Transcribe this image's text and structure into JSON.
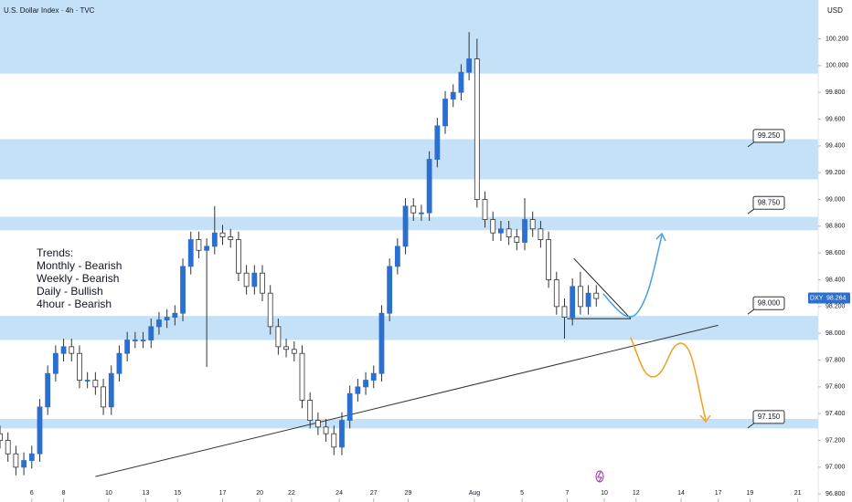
{
  "chart_data": {
    "type": "candlestick",
    "title": "U.S. Dollar Index · 4h · TVC",
    "currency": "USD",
    "symbol": "DXY",
    "last_price": {
      "value": 98.264,
      "label": "98.264"
    },
    "up_color": "#2a6fd1",
    "down_color": "#ffffff",
    "zone_color": "#c5e1f8",
    "x": [
      0,
      3,
      6,
      9,
      12,
      15,
      18,
      21,
      24,
      27,
      30,
      33,
      36,
      39,
      42,
      45,
      48,
      51,
      54,
      57,
      60,
      63,
      66,
      69,
      72,
      75,
      78,
      81,
      84,
      87,
      90,
      93,
      96,
      99,
      102,
      105,
      108,
      111,
      114,
      117,
      120,
      123,
      126,
      129,
      132,
      135,
      138,
      141,
      144,
      147,
      150,
      153,
      156,
      159,
      162,
      165,
      168,
      171,
      174,
      177,
      180,
      183,
      186,
      189,
      192,
      195,
      198,
      201,
      204,
      207,
      210,
      213,
      216,
      219,
      222,
      225
    ],
    "open": [
      97.25,
      97.2,
      97.1,
      97.0,
      97.05,
      97.1,
      97.45,
      97.7,
      97.85,
      97.9,
      97.85,
      97.65,
      97.65,
      97.6,
      97.45,
      97.7,
      97.85,
      97.95,
      97.95,
      97.95,
      98.05,
      98.1,
      98.12,
      98.15,
      98.5,
      98.7,
      98.62,
      98.65,
      98.75,
      98.72,
      98.7,
      98.45,
      98.35,
      98.45,
      98.3,
      98.05,
      97.9,
      97.88,
      97.85,
      97.5,
      97.35,
      97.3,
      97.25,
      97.15,
      97.35,
      97.55,
      97.6,
      97.65,
      97.7,
      98.15,
      98.5,
      98.65,
      98.95,
      98.9,
      98.9,
      99.3,
      99.55,
      99.75,
      99.8,
      99.95,
      100.05,
      99.0,
      98.85,
      98.75,
      98.78,
      98.72,
      98.68,
      98.85,
      98.78,
      98.7,
      98.4,
      98.2,
      98.12,
      98.35,
      98.2,
      98.3
    ],
    "high": [
      97.31,
      97.26,
      97.16,
      97.11,
      97.16,
      97.51,
      97.76,
      97.91,
      97.96,
      97.96,
      97.91,
      97.71,
      97.71,
      97.66,
      97.76,
      97.91,
      98.01,
      98.01,
      98.01,
      98.11,
      98.16,
      98.18,
      98.21,
      98.56,
      98.76,
      98.76,
      98.71,
      98.95,
      98.81,
      98.78,
      98.76,
      98.51,
      98.51,
      98.51,
      98.36,
      98.11,
      97.96,
      97.94,
      97.91,
      97.56,
      97.41,
      97.36,
      97.31,
      97.41,
      97.61,
      97.66,
      97.71,
      97.76,
      98.21,
      98.56,
      98.71,
      99.01,
      99.01,
      98.96,
      99.36,
      99.61,
      99.81,
      99.86,
      100.01,
      100.25,
      100.2,
      99.06,
      98.91,
      98.84,
      98.84,
      98.78,
      99.01,
      98.91,
      98.84,
      98.76,
      98.46,
      98.26,
      98.41,
      98.46,
      98.36,
      98.36
    ],
    "low": [
      97.14,
      97.04,
      96.94,
      96.94,
      96.99,
      97.04,
      97.39,
      97.64,
      97.79,
      97.79,
      97.59,
      97.59,
      97.54,
      97.39,
      97.39,
      97.64,
      97.79,
      97.89,
      97.89,
      97.89,
      97.99,
      98.04,
      98.06,
      98.09,
      98.44,
      98.56,
      97.75,
      98.59,
      98.66,
      98.64,
      98.39,
      98.29,
      98.29,
      98.24,
      97.99,
      97.84,
      97.82,
      97.79,
      97.44,
      97.29,
      97.24,
      97.19,
      97.09,
      97.09,
      97.29,
      97.49,
      97.54,
      97.59,
      97.64,
      98.09,
      98.44,
      98.59,
      98.84,
      98.84,
      98.84,
      99.24,
      99.49,
      99.69,
      99.74,
      99.89,
      98.94,
      98.79,
      98.69,
      98.69,
      98.66,
      98.62,
      98.62,
      98.72,
      98.64,
      98.34,
      98.14,
      97.96,
      98.06,
      98.14,
      98.14,
      98.2
    ],
    "close": [
      97.2,
      97.1,
      97.0,
      97.05,
      97.1,
      97.45,
      97.7,
      97.85,
      97.9,
      97.85,
      97.65,
      97.65,
      97.6,
      97.45,
      97.7,
      97.85,
      97.95,
      97.95,
      97.95,
      98.05,
      98.1,
      98.12,
      98.15,
      98.5,
      98.7,
      98.62,
      98.65,
      98.75,
      98.72,
      98.7,
      98.45,
      98.35,
      98.45,
      98.3,
      98.05,
      97.9,
      97.88,
      97.85,
      97.5,
      97.35,
      97.3,
      97.25,
      97.15,
      97.35,
      97.55,
      97.6,
      97.65,
      97.7,
      98.15,
      98.5,
      98.65,
      98.95,
      98.9,
      98.9,
      99.3,
      99.55,
      99.75,
      99.8,
      99.95,
      100.05,
      99.0,
      98.85,
      98.75,
      98.78,
      98.72,
      98.68,
      98.85,
      98.78,
      98.7,
      98.4,
      98.2,
      98.12,
      98.35,
      98.2,
      98.3,
      98.26
    ],
    "xlim": [
      0,
      307
    ],
    "ylim": [
      96.74,
      100.49
    ],
    "xticks": [
      {
        "value": 12,
        "label": "6"
      },
      {
        "value": 24,
        "label": "8"
      },
      {
        "value": 41,
        "label": "10"
      },
      {
        "value": 55,
        "label": "13"
      },
      {
        "value": 67,
        "label": "15"
      },
      {
        "value": 84,
        "label": "17"
      },
      {
        "value": 98,
        "label": "20"
      },
      {
        "value": 110,
        "label": "22"
      },
      {
        "value": 128,
        "label": "24"
      },
      {
        "value": 141,
        "label": "27"
      },
      {
        "value": 154,
        "label": "29"
      },
      {
        "value": 179,
        "label": "Aug"
      },
      {
        "value": 197,
        "label": "5"
      },
      {
        "value": 214,
        "label": "7"
      },
      {
        "value": 228,
        "label": "10"
      },
      {
        "value": 240,
        "label": "12"
      },
      {
        "value": 257,
        "label": "14"
      },
      {
        "value": 271,
        "label": "17"
      },
      {
        "value": 283,
        "label": "19"
      },
      {
        "value": 301,
        "label": "21"
      }
    ],
    "yticks": [
      {
        "value": 100.2,
        "label": "100.200"
      },
      {
        "value": 100.0,
        "label": "100.000"
      },
      {
        "value": 99.8,
        "label": "99.800"
      },
      {
        "value": 99.6,
        "label": "99.600"
      },
      {
        "value": 99.4,
        "label": "99.400"
      },
      {
        "value": 99.2,
        "label": "99.200"
      },
      {
        "value": 99.0,
        "label": "99.000"
      },
      {
        "value": 98.8,
        "label": "98.800"
      },
      {
        "value": 98.6,
        "label": "98.600"
      },
      {
        "value": 98.4,
        "label": "98.400"
      },
      {
        "value": 98.2,
        "label": "98.200"
      },
      {
        "value": 98.0,
        "label": "98.000"
      },
      {
        "value": 97.8,
        "label": "97.800"
      },
      {
        "value": 97.6,
        "label": "97.600"
      },
      {
        "value": 97.4,
        "label": "97.400"
      },
      {
        "value": 97.2,
        "label": "97.200"
      },
      {
        "value": 97.0,
        "label": "97.000"
      },
      {
        "value": 96.8,
        "label": "96.800"
      }
    ],
    "zones": [
      {
        "low": 99.94,
        "high": 100.49
      },
      {
        "low": 99.15,
        "high": 99.45
      },
      {
        "low": 98.77,
        "high": 98.87
      },
      {
        "low": 97.95,
        "high": 98.13
      },
      {
        "low": 97.29,
        "high": 97.36
      }
    ],
    "trendline": {
      "x": [
        36,
        271
      ],
      "y": [
        96.93,
        98.06
      ]
    },
    "triangle": [
      {
        "x": [
          216.5,
          238
        ],
        "y": [
          98.56,
          98.11
        ]
      },
      {
        "x": [
          214,
          238
        ],
        "y": [
          98.11,
          98.11
        ]
      }
    ],
    "price_labels": [
      {
        "value": 99.25,
        "label": "99.250"
      },
      {
        "value": 98.75,
        "label": "98.750"
      },
      {
        "value": 98.0,
        "label": "98.000"
      },
      {
        "value": 97.15,
        "label": "97.150"
      }
    ],
    "trends": [
      "Trends:",
      "Monthly - Bearish",
      "Weekly - Bearish",
      "Daily - Bullish",
      "4hour - Bearish"
    ]
  }
}
